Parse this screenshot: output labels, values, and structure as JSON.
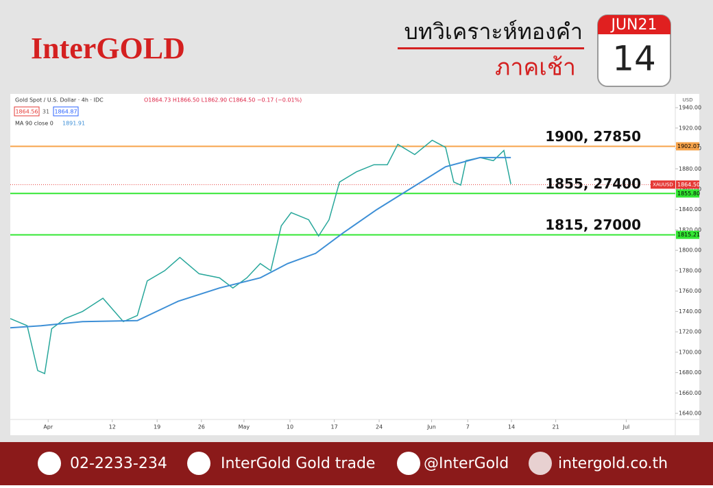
{
  "header": {
    "logo": "InterGOLD",
    "title": "บทวิเคราะห์ทองคำ",
    "subtitle": "ภาคเช้า",
    "calendar_month": "JUN21",
    "calendar_day": "14"
  },
  "chart_data": {
    "type": "line",
    "symbol": "Gold Spot / U.S. Dollar · 4h · IDC",
    "ohlc": "O1864.73 H1866.50 L1862.90 C1864.50 −0.17 (−0.01%)",
    "bid": "1864.56",
    "spread": "31",
    "ask": "1864.87",
    "indicator": "MA 90 close 0",
    "indicator_value": "1891.91",
    "currency": "USD",
    "xlim": [
      0,
      114
    ],
    "ylim": [
      1634,
      1953.5
    ],
    "xticks": [
      {
        "value": 6.5,
        "label": "Apr"
      },
      {
        "value": 17.5,
        "label": "12"
      },
      {
        "value": 25.2,
        "label": "19"
      },
      {
        "value": 32.8,
        "label": "26"
      },
      {
        "value": 40.1,
        "label": "May"
      },
      {
        "value": 48,
        "label": "10"
      },
      {
        "value": 55.6,
        "label": "17"
      },
      {
        "value": 63.3,
        "label": "24"
      },
      {
        "value": 72.3,
        "label": "Jun"
      },
      {
        "value": 78.5,
        "label": "7"
      },
      {
        "value": 86,
        "label": "14"
      },
      {
        "value": 93.6,
        "label": "21"
      },
      {
        "value": 105.7,
        "label": "Jul"
      }
    ],
    "yticks": [
      {
        "value": 1640,
        "label": "1640.00"
      },
      {
        "value": 1660,
        "label": "1660.00"
      },
      {
        "value": 1680,
        "label": "1680.00"
      },
      {
        "value": 1700,
        "label": "1700.00"
      },
      {
        "value": 1720,
        "label": "1720.00"
      },
      {
        "value": 1740,
        "label": "1740.00"
      },
      {
        "value": 1760,
        "label": "1760.00"
      },
      {
        "value": 1780,
        "label": "1780.00"
      },
      {
        "value": 1800,
        "label": "1800.00"
      },
      {
        "value": 1820,
        "label": "1820.00"
      },
      {
        "value": 1840,
        "label": "1840.00"
      },
      {
        "value": 1860,
        "label": "1860.00"
      },
      {
        "value": 1880,
        "label": "1880.00"
      },
      {
        "value": 1900,
        "label": "1900.00"
      },
      {
        "value": 1920,
        "label": "1920.00"
      },
      {
        "value": 1940,
        "label": "1940.00"
      }
    ],
    "series": [
      {
        "name": "Gold Spot",
        "color": "#26a69a",
        "x": [
          0,
          2.9,
          4.7,
          5.9,
          7.1,
          9.4,
          12.4,
          15.9,
          19.4,
          21.8,
          23.5,
          26.5,
          29.1,
          32.4,
          35.9,
          38.2,
          40.6,
          42.9,
          44.7,
          46.5,
          48.2,
          51.2,
          52.9,
          54.7,
          56.5,
          59.4,
          62.4,
          64.7,
          66.5,
          69.4,
          72.4,
          74.7,
          76.1,
          77.3,
          78.2,
          80.6,
          82.9,
          84.7,
          85.9
        ],
        "values": [
          1733,
          1726,
          1682,
          1679,
          1723,
          1733,
          1740,
          1753,
          1730,
          1736,
          1770,
          1780,
          1793,
          1777,
          1773,
          1763,
          1773,
          1787,
          1780,
          1824,
          1837,
          1830,
          1814,
          1830,
          1867,
          1877,
          1884,
          1884,
          1904,
          1894,
          1908,
          1901,
          1867,
          1864,
          1888,
          1891,
          1888,
          1898,
          1865
        ]
      },
      {
        "name": "MA 90",
        "color": "#3d8fd6",
        "x": [
          0,
          5.3,
          12.4,
          21.8,
          28.8,
          35.9,
          42.9,
          47.6,
          52.4,
          57.1,
          62.9,
          68.8,
          74.7,
          80.6,
          85.9
        ],
        "values": [
          1724,
          1726,
          1730,
          1731,
          1750,
          1763,
          1773,
          1787,
          1797,
          1817,
          1840,
          1861,
          1882,
          1891,
          1891
        ]
      }
    ],
    "levels": [
      {
        "value": 1902.07,
        "label": "1902.07",
        "color": "#f7a34a",
        "annotation": "1900, 27850"
      },
      {
        "value": 1855.8,
        "label": "1855.80",
        "color": "#33e633",
        "annotation": "1855, 27400"
      },
      {
        "value": 1815.21,
        "label": "1815.21",
        "color": "#33e633",
        "annotation": "1815, 27000"
      }
    ],
    "last": {
      "value": 1864.5,
      "label": "1864.50",
      "symbol": "XAUUSD",
      "color": "#e53935"
    }
  },
  "footer": {
    "phone": "02-2233-234",
    "facebook": "InterGold Gold trade",
    "line": "@InterGold",
    "web": "intergold.co.th"
  }
}
